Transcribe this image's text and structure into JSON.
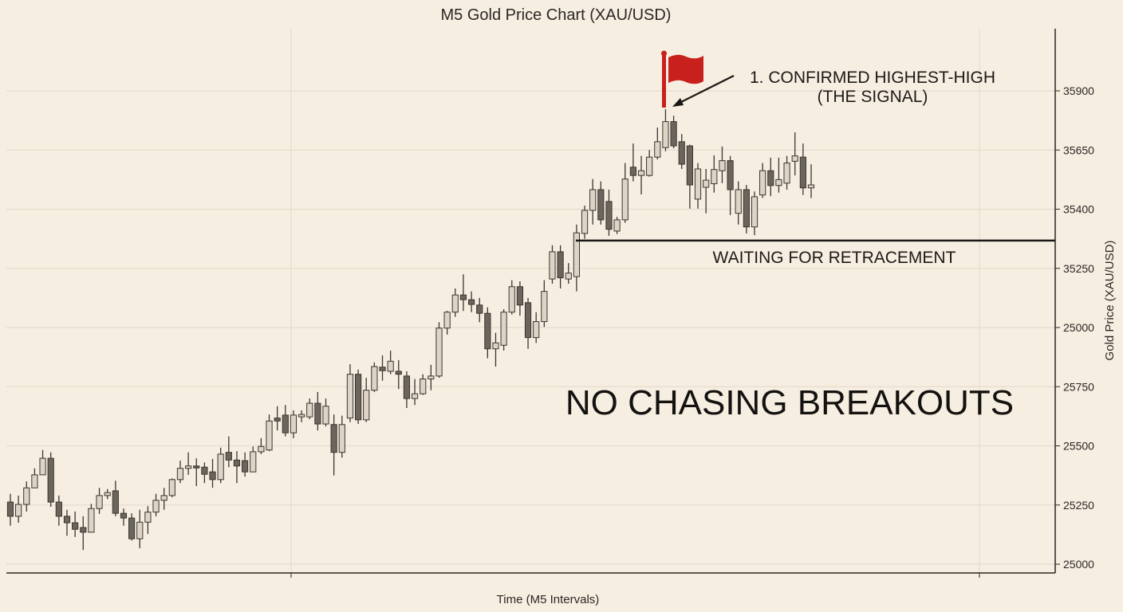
{
  "chart_data": {
    "type": "candlestick",
    "title": "M5 Gold Price Chart (XAU/USD)",
    "xlabel": "Time (M5 Intervals)",
    "ylabel": "Gold Price (XAU/USD)",
    "y_units_note": "levels 0-8 correspond to the printed tick labels in order",
    "ylim": [
      -0.15,
      9.0
    ],
    "yticks": [
      {
        "level": 0,
        "label": "25000"
      },
      {
        "level": 1,
        "label": "25250"
      },
      {
        "level": 2,
        "label": "25500"
      },
      {
        "level": 3,
        "label": "25750"
      },
      {
        "level": 4,
        "label": "25000"
      },
      {
        "level": 5,
        "label": "35250"
      },
      {
        "level": 6,
        "label": "35400"
      },
      {
        "level": 7,
        "label": "35650"
      },
      {
        "level": 8,
        "label": "35900"
      }
    ],
    "grid": true,
    "candles_ohlc": [
      [
        1.05,
        1.19,
        0.65,
        0.81
      ],
      [
        0.81,
        1.16,
        0.7,
        1.01
      ],
      [
        1.01,
        1.4,
        0.89,
        1.29
      ],
      [
        1.29,
        1.62,
        1.37,
        1.51
      ],
      [
        1.51,
        1.93,
        1.66,
        1.79
      ],
      [
        1.79,
        1.89,
        0.97,
        1.05
      ],
      [
        1.05,
        1.16,
        0.65,
        0.81
      ],
      [
        0.81,
        0.92,
        0.48,
        0.7
      ],
      [
        0.7,
        0.89,
        0.46,
        0.59
      ],
      [
        0.62,
        0.81,
        0.24,
        0.54
      ],
      [
        0.54,
        1.02,
        0.54,
        0.94
      ],
      [
        0.94,
        1.29,
        0.85,
        1.16
      ],
      [
        1.16,
        1.27,
        1.1,
        1.21
      ],
      [
        1.24,
        1.41,
        0.81,
        0.86
      ],
      [
        0.86,
        0.94,
        0.65,
        0.78
      ],
      [
        0.78,
        0.86,
        0.4,
        0.43
      ],
      [
        0.43,
        0.92,
        0.27,
        0.71
      ],
      [
        0.71,
        0.98,
        0.51,
        0.88
      ],
      [
        0.88,
        1.19,
        0.81,
        1.08
      ],
      [
        1.08,
        1.29,
        0.92,
        1.16
      ],
      [
        1.16,
        1.45,
        1.13,
        1.43
      ],
      [
        1.43,
        1.75,
        1.37,
        1.62
      ],
      [
        1.62,
        1.89,
        1.51,
        1.66
      ],
      [
        1.66,
        1.79,
        1.32,
        1.64
      ],
      [
        1.64,
        1.72,
        1.37,
        1.52
      ],
      [
        1.56,
        1.78,
        1.29,
        1.43
      ],
      [
        1.43,
        1.97,
        1.37,
        1.86
      ],
      [
        1.89,
        2.16,
        1.64,
        1.76
      ],
      [
        1.76,
        1.91,
        1.37,
        1.66
      ],
      [
        1.75,
        1.89,
        1.48,
        1.56
      ],
      [
        1.56,
        1.99,
        1.56,
        1.9
      ],
      [
        1.9,
        2.13,
        1.86,
        1.99
      ],
      [
        1.93,
        2.53,
        1.91,
        2.42
      ],
      [
        2.47,
        2.67,
        2.26,
        2.42
      ],
      [
        2.52,
        2.69,
        2.16,
        2.22
      ],
      [
        2.22,
        2.6,
        2.13,
        2.52
      ],
      [
        2.49,
        2.6,
        2.4,
        2.53
      ],
      [
        2.49,
        2.8,
        2.45,
        2.72
      ],
      [
        2.72,
        2.91,
        2.26,
        2.37
      ],
      [
        2.37,
        2.8,
        2.33,
        2.67
      ],
      [
        2.36,
        2.53,
        1.5,
        1.89
      ],
      [
        1.89,
        2.51,
        1.8,
        2.36
      ],
      [
        2.47,
        3.38,
        2.4,
        3.21
      ],
      [
        3.21,
        3.29,
        2.37,
        2.44
      ],
      [
        2.44,
        3.15,
        2.4,
        2.94
      ],
      [
        2.94,
        3.41,
        2.91,
        3.34
      ],
      [
        3.33,
        3.53,
        3.1,
        3.27
      ],
      [
        3.26,
        3.61,
        3.21,
        3.43
      ],
      [
        3.26,
        3.45,
        2.96,
        3.21
      ],
      [
        3.18,
        3.26,
        2.64,
        2.8
      ],
      [
        2.8,
        3.13,
        2.69,
        2.88
      ],
      [
        2.88,
        3.21,
        2.86,
        3.13
      ],
      [
        3.13,
        3.37,
        2.94,
        3.18
      ],
      [
        3.18,
        4.09,
        3.15,
        3.99
      ],
      [
        3.99,
        4.28,
        3.88,
        4.26
      ],
      [
        4.26,
        4.66,
        4.18,
        4.55
      ],
      [
        4.55,
        4.9,
        4.28,
        4.47
      ],
      [
        4.47,
        4.61,
        4.26,
        4.39
      ],
      [
        4.38,
        4.5,
        4.09,
        4.24
      ],
      [
        4.24,
        4.34,
        3.48,
        3.64
      ],
      [
        3.64,
        3.91,
        3.34,
        3.74
      ],
      [
        3.7,
        4.31,
        3.61,
        4.26
      ],
      [
        4.26,
        4.8,
        4.22,
        4.69
      ],
      [
        4.69,
        4.78,
        4.2,
        4.38
      ],
      [
        4.42,
        4.5,
        3.64,
        3.83
      ],
      [
        3.83,
        4.26,
        3.74,
        4.1
      ],
      [
        4.1,
        4.8,
        4.01,
        4.61
      ],
      [
        4.82,
        5.39,
        4.74,
        5.28
      ],
      [
        5.28,
        5.39,
        4.66,
        4.84
      ],
      [
        4.82,
        5.09,
        4.74,
        4.92
      ],
      [
        4.86,
        5.74,
        4.61,
        5.6
      ],
      [
        5.59,
        6.06,
        5.5,
        5.98
      ],
      [
        5.98,
        6.51,
        5.74,
        6.33
      ],
      [
        6.33,
        6.47,
        5.74,
        5.82
      ],
      [
        6.13,
        6.33,
        5.55,
        5.66
      ],
      [
        5.63,
        5.87,
        5.58,
        5.82
      ],
      [
        5.82,
        6.78,
        5.77,
        6.51
      ],
      [
        6.71,
        7.11,
        6.47,
        6.57
      ],
      [
        6.57,
        6.9,
        6.25,
        6.65
      ],
      [
        6.57,
        7.0,
        6.55,
        6.88
      ],
      [
        6.88,
        7.38,
        6.84,
        7.14
      ],
      [
        7.04,
        7.69,
        6.98,
        7.48
      ],
      [
        7.48,
        7.58,
        7.03,
        7.07
      ],
      [
        7.14,
        7.27,
        6.68,
        6.76
      ],
      [
        7.07,
        7.09,
        6.01,
        6.41
      ],
      [
        6.17,
        6.78,
        6.01,
        6.68
      ],
      [
        6.37,
        6.68,
        5.93,
        6.49
      ],
      [
        6.43,
        6.91,
        6.28,
        6.67
      ],
      [
        6.65,
        7.06,
        6.44,
        6.82
      ],
      [
        6.82,
        6.9,
        5.9,
        6.33
      ],
      [
        5.93,
        6.47,
        5.74,
        6.33
      ],
      [
        6.33,
        6.41,
        5.59,
        5.7
      ],
      [
        5.7,
        6.3,
        5.56,
        6.21
      ],
      [
        6.24,
        6.78,
        6.19,
        6.65
      ],
      [
        6.65,
        6.87,
        6.22,
        6.4
      ],
      [
        6.4,
        6.87,
        6.28,
        6.5
      ],
      [
        6.44,
        6.9,
        6.33,
        6.78
      ],
      [
        6.81,
        7.3,
        6.57,
        6.9
      ],
      [
        6.88,
        7.11,
        6.24,
        6.36
      ],
      [
        6.36,
        6.76,
        6.19,
        6.41
      ]
    ],
    "retracement_level": 5.47,
    "signal_candle_index": 81,
    "annotations": {
      "signal_line1": "1. CONFIRMED HIGHEST-HIGH",
      "signal_line2": "(THE SIGNAL)",
      "retracement": "WAITING FOR RETRACEMENT",
      "headline": "NO CHASING BREAKOUTS"
    },
    "colors": {
      "background": "#f7eee2",
      "bull": "#ddd4c6",
      "bear": "#6b655c",
      "outline": "#3a3630",
      "flag": "#c8201d",
      "grid": "#e6dccd"
    }
  }
}
